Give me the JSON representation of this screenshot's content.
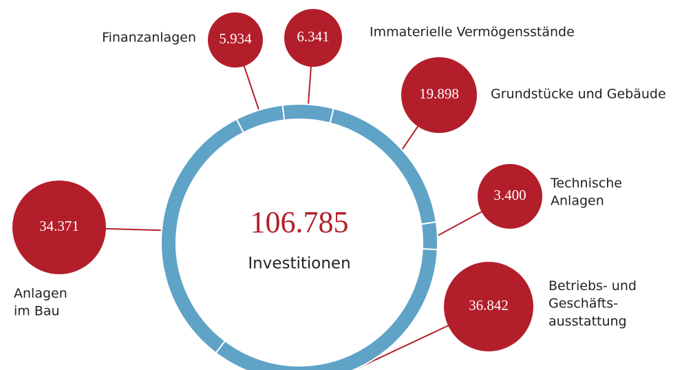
{
  "chart_data": {
    "type": "donut",
    "center_value": "106.785",
    "center_label": "Investitionen",
    "categories": [
      "Finanzanlagen",
      "Immaterielle Vermögensstände",
      "Grundstücke und Gebäude",
      "Technische\nAnlagen",
      "Betriebs- und\nGeschäfts-\nausstattung",
      "Anlagen\nim Bau"
    ],
    "values": [
      5934,
      6341,
      19898,
      3400,
      36842,
      34371
    ],
    "value_labels": [
      "5.934",
      "6.341",
      "19.898",
      "3.400",
      "36.842",
      "34.371"
    ],
    "color": "#5fa3c7",
    "bubble_color": "#b31e2b"
  }
}
